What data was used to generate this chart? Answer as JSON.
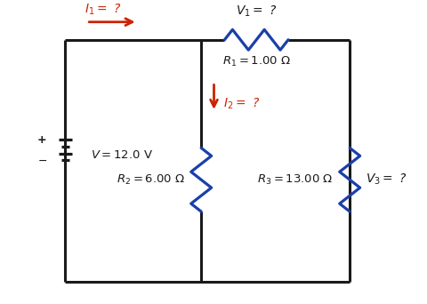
{
  "fig_width": 4.81,
  "fig_height": 3.42,
  "dpi": 100,
  "bg_color": "#ffffff",
  "wire_color": "#1a1a1a",
  "resistor_color": "#1a3faa",
  "arrow_color": "#cc2200",
  "text_color": "#1a1a1a",
  "wire_lw": 2.2,
  "res_lw": 2.3,
  "labels": {
    "I1": "$I_1 =$ ?",
    "V1_label": "$V_1 =$ ?",
    "R1_label": "$R_1 = 1.00\\ \\Omega$",
    "V_label": "$V = 12.0\\ \\mathrm{V}$",
    "I2_label": "$I_2 =$ ?",
    "R2_label": "$R_2 = 6.00\\ \\Omega$",
    "R3_label": "$R_3 = 13.00\\ \\Omega$",
    "V3_label": "$V_3 =$ ?"
  },
  "xlim": [
    0,
    9
  ],
  "ylim": [
    0,
    7
  ]
}
